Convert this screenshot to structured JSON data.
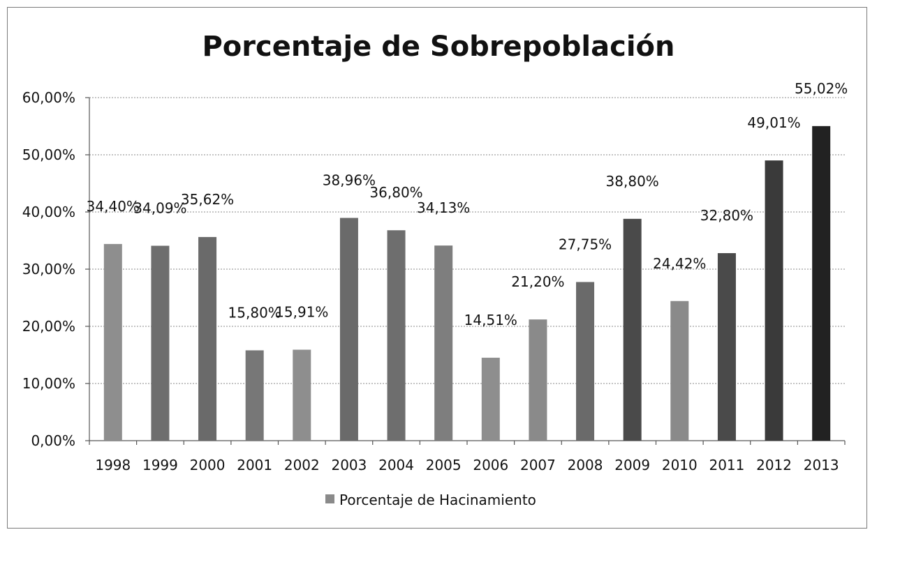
{
  "chart_data": {
    "type": "bar",
    "title": "Porcentaje de Sobrepoblación",
    "xlabel": "",
    "ylabel": "",
    "ylim": [
      0,
      60
    ],
    "yticks": [
      0,
      10,
      20,
      30,
      40,
      50,
      60
    ],
    "ytick_labels": [
      "0,00%",
      "10,00%",
      "20,00%",
      "30,00%",
      "40,00%",
      "50,00%",
      "60,00%"
    ],
    "grid": true,
    "legend_position": "bottom",
    "categories": [
      "1998",
      "1999",
      "2000",
      "2001",
      "2002",
      "2003",
      "2004",
      "2005",
      "2006",
      "2007",
      "2008",
      "2009",
      "2010",
      "2011",
      "2012",
      "2013"
    ],
    "series": [
      {
        "name": "Porcentaje de Hacinamiento",
        "color": "#8a8a8a",
        "values": [
          34.4,
          34.09,
          35.62,
          15.8,
          15.91,
          38.96,
          36.8,
          34.13,
          14.51,
          21.2,
          27.75,
          38.8,
          24.42,
          32.8,
          49.01,
          55.02
        ],
        "value_labels": [
          "34,40%",
          "34,09%",
          "35,62%",
          "15,80%",
          "15,91%",
          "38,96%",
          "36,80%",
          "34,13%",
          "14,51%",
          "21,20%",
          "27,75%",
          "38,80%",
          "24,42%",
          "32,80%",
          "49,01%",
          "55,02%"
        ]
      }
    ],
    "bar_colors": [
      "#8e8e8e",
      "#6e6e6e",
      "#6a6a6a",
      "#777777",
      "#8e8e8e",
      "#6a6a6a",
      "#6e6e6e",
      "#7e7e7e",
      "#8e8e8e",
      "#8a8a8a",
      "#6a6a6a",
      "#4a4a4a",
      "#8a8a8a",
      "#4a4a4a",
      "#3a3a3a",
      "#222222"
    ]
  }
}
